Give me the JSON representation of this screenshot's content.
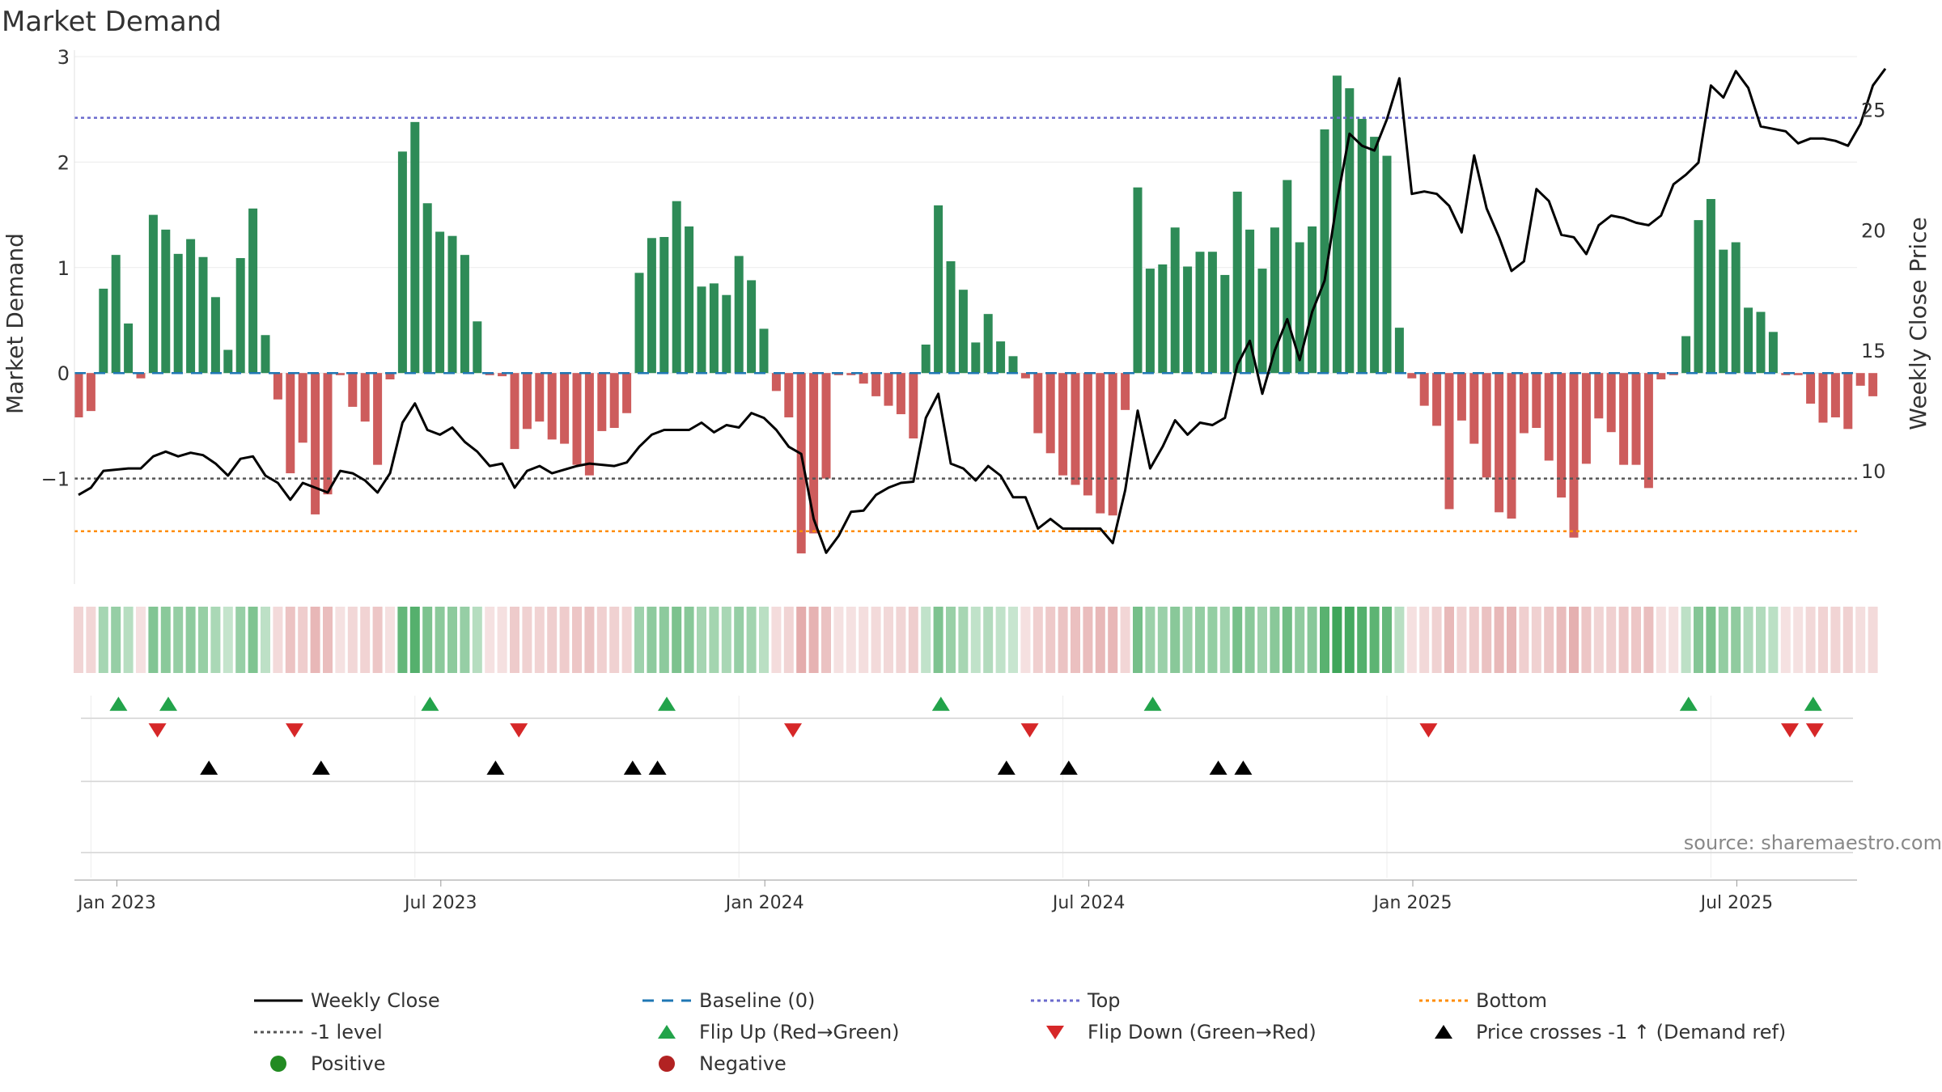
{
  "chart_data": {
    "type": "bar",
    "title": "Market Demand",
    "ylabel_left": "Market Demand",
    "ylabel_right": "Weekly Close Price",
    "y_left_range": [
      -2.0,
      3.0
    ],
    "y_left_ticks": [
      {
        "v": 3,
        "label": "3"
      },
      {
        "v": 2,
        "label": "2"
      },
      {
        "v": 1,
        "label": "1"
      },
      {
        "v": 0,
        "label": "0"
      },
      {
        "v": -1,
        "label": "−1"
      }
    ],
    "y_right_range": [
      5.3,
      27.2
    ],
    "y_right_ticks": [
      {
        "v": 25,
        "label": "25"
      },
      {
        "v": 20,
        "label": "20"
      },
      {
        "v": 15,
        "label": "15"
      },
      {
        "v": 10,
        "label": "10"
      }
    ],
    "x_ticks": [
      {
        "i": 1,
        "label": "Jan 2023"
      },
      {
        "i": 27,
        "label": "Jul 2023"
      },
      {
        "i": 53,
        "label": "Jan 2024"
      },
      {
        "i": 79,
        "label": "Jul 2024"
      },
      {
        "i": 105,
        "label": "Jan 2025"
      },
      {
        "i": 131,
        "label": "Jul 2025"
      }
    ],
    "reference_lines": {
      "top": 2.42,
      "bottom": -1.5,
      "minus_one": -1,
      "baseline": 0
    },
    "source_note": "source: sharemaestro.com",
    "colors": {
      "positive": "#2e8b57",
      "negative": "#cd5c5c",
      "price": "#000000",
      "top": "#6a6acd",
      "bottom": "#ff8c00",
      "minus_one": "#555555",
      "baseline": "#1f77b4",
      "flip_up": "#22a34a",
      "flip_down": "#d62728",
      "cross": "#000000"
    },
    "demand": [
      -0.42,
      -0.36,
      0.8,
      1.12,
      0.47,
      -0.05,
      1.5,
      1.36,
      1.13,
      1.27,
      1.1,
      0.72,
      0.22,
      1.09,
      1.56,
      0.36,
      -0.25,
      -0.95,
      -0.66,
      -1.34,
      -1.15,
      -0.02,
      -0.32,
      -0.46,
      -0.87,
      -0.06,
      2.1,
      2.38,
      1.61,
      1.34,
      1.3,
      1.12,
      0.49,
      -0.02,
      -0.03,
      -0.72,
      -0.53,
      -0.46,
      -0.63,
      -0.67,
      -0.87,
      -0.97,
      -0.55,
      -0.52,
      -0.38,
      0.95,
      1.28,
      1.29,
      1.63,
      1.39,
      0.82,
      0.85,
      0.74,
      1.11,
      0.88,
      0.42,
      -0.17,
      -0.42,
      -1.71,
      -1.52,
      -1.0,
      -0.02,
      -0.02,
      -0.1,
      -0.22,
      -0.31,
      -0.39,
      -0.62,
      0.27,
      1.59,
      1.06,
      0.79,
      0.29,
      0.56,
      0.3,
      0.16,
      -0.05,
      -0.57,
      -0.76,
      -0.97,
      -1.06,
      -1.16,
      -1.33,
      -1.35,
      -0.35,
      1.76,
      0.99,
      1.03,
      1.38,
      1.01,
      1.15,
      1.15,
      0.93,
      1.72,
      1.36,
      0.99,
      1.38,
      1.83,
      1.24,
      1.39,
      2.31,
      2.82,
      2.7,
      2.41,
      2.24,
      2.06,
      0.43,
      -0.05,
      -0.31,
      -0.5,
      -1.29,
      -0.45,
      -0.67,
      -0.99,
      -1.32,
      -1.38,
      -0.57,
      -0.52,
      -0.83,
      -1.18,
      -1.56,
      -0.86,
      -0.43,
      -0.56,
      -0.87,
      -0.87,
      -1.09,
      -0.06,
      -0.02,
      0.35,
      1.45,
      1.65,
      1.17,
      1.24,
      0.62,
      0.58,
      0.39,
      -0.02,
      -0.02,
      -0.29,
      -0.47,
      -0.42,
      -0.53,
      -0.12,
      -0.22
    ],
    "price": [
      9.0,
      9.3,
      10.0,
      10.05,
      10.1,
      10.1,
      10.6,
      10.8,
      10.6,
      10.75,
      10.65,
      10.3,
      9.8,
      10.5,
      10.6,
      9.8,
      9.5,
      8.8,
      9.5,
      9.3,
      9.1,
      10.0,
      9.9,
      9.6,
      9.1,
      9.9,
      12.0,
      12.8,
      11.7,
      11.5,
      11.8,
      11.2,
      10.8,
      10.2,
      10.3,
      9.3,
      10.0,
      10.2,
      9.9,
      10.05,
      10.2,
      10.3,
      10.25,
      10.2,
      10.35,
      11.0,
      11.5,
      11.7,
      11.7,
      11.7,
      12.0,
      11.6,
      11.9,
      11.8,
      12.4,
      12.2,
      11.7,
      11.0,
      10.7,
      8.0,
      6.6,
      7.3,
      8.3,
      8.35,
      9.0,
      9.3,
      9.5,
      9.55,
      12.2,
      13.2,
      10.3,
      10.1,
      9.6,
      10.2,
      9.8,
      8.9,
      8.9,
      7.6,
      8.0,
      7.6,
      7.6,
      7.6,
      7.6,
      7.0,
      9.2,
      12.5,
      10.1,
      11.0,
      12.1,
      11.5,
      12.0,
      11.9,
      12.2,
      14.4,
      15.4,
      13.2,
      15.0,
      16.3,
      14.6,
      16.6,
      17.9,
      21.2,
      24.0,
      23.5,
      23.3,
      24.6,
      26.3,
      21.5,
      21.6,
      21.5,
      21.0,
      19.9,
      23.1,
      20.9,
      19.7,
      18.3,
      18.7,
      21.7,
      21.2,
      19.8,
      19.7,
      19.0,
      20.2,
      20.6,
      20.5,
      20.3,
      20.2,
      20.6,
      21.9,
      22.3,
      22.8,
      26.0,
      25.5,
      26.6,
      25.9,
      24.3,
      24.2,
      24.1,
      23.6,
      23.8,
      23.8,
      23.7,
      23.5,
      24.4,
      26.0,
      26.7
    ],
    "flip_up_idx": [
      1,
      5,
      26,
      45,
      67,
      84,
      127,
      137
    ],
    "flip_down_idx": [
      4,
      15,
      33,
      55,
      74,
      106,
      135,
      137
    ],
    "cross_idx": [
      3,
      12,
      26,
      37,
      39,
      67,
      72,
      84,
      86
    ],
    "legend": [
      {
        "label": "Weekly Close",
        "kind": "line-solid",
        "color": "#000000"
      },
      {
        "label": "Baseline (0)",
        "kind": "line-dash",
        "color": "#1f77b4"
      },
      {
        "label": "Top",
        "kind": "line-dot",
        "color": "#6a6acd"
      },
      {
        "label": "Bottom",
        "kind": "line-dot",
        "color": "#ff8c00"
      },
      {
        "label": "-1 level",
        "kind": "line-dot",
        "color": "#555555"
      },
      {
        "label": "Flip Up (Red→Green)",
        "kind": "tri-up",
        "color": "#22a34a"
      },
      {
        "label": "Flip Down (Green→Red)",
        "kind": "tri-down",
        "color": "#d62728"
      },
      {
        "label": "Price crosses -1 ↑ (Demand ref)",
        "kind": "tri-up",
        "color": "#000000"
      },
      {
        "label": "Positive",
        "kind": "dot",
        "color": "#228b22"
      },
      {
        "label": "Negative",
        "kind": "dot",
        "color": "#b22222"
      }
    ]
  }
}
